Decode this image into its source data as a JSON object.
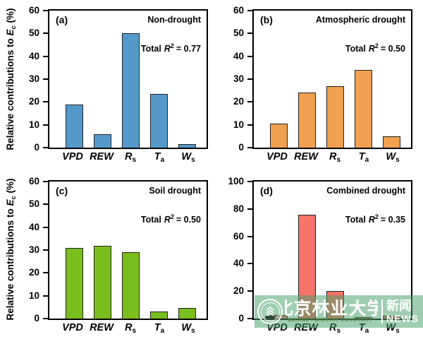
{
  "ylabel": {
    "prefix": "Relative contributions to ",
    "var": "E",
    "var_sub": "c",
    "suffix": " (%)"
  },
  "r2_parts": {
    "word": "Total",
    "symbol": "R",
    "sup": "2"
  },
  "categories": [
    {
      "main": "VPD",
      "sub": ""
    },
    {
      "main": "REW",
      "sub": ""
    },
    {
      "main": "R",
      "sub": "s"
    },
    {
      "main": "T",
      "sub": "a"
    },
    {
      "main": "W",
      "sub": "s"
    }
  ],
  "chart_data": [
    {
      "type": "bar",
      "panel_label": "(a)",
      "condition": "Non-drought",
      "total_r2": 0.77,
      "r2_display": "= 0.77",
      "color": "#5599CB",
      "bar_edge_color": "#222222",
      "categories": [
        "VPD",
        "REW",
        "R_s",
        "T_a",
        "W_s"
      ],
      "values": [
        19,
        6,
        50,
        23.5,
        1.5
      ],
      "ylim": [
        0,
        60
      ],
      "yticks": [
        0,
        10,
        20,
        30,
        40,
        50,
        60
      ],
      "ylabel": "Relative contributions to E_c (%)",
      "grid": false
    },
    {
      "type": "bar",
      "panel_label": "(b)",
      "condition": "Atmospheric drought",
      "total_r2": 0.5,
      "r2_display": "= 0.50",
      "color": "#F0A050",
      "bar_edge_color": "#222222",
      "categories": [
        "VPD",
        "REW",
        "R_s",
        "T_a",
        "W_s"
      ],
      "values": [
        10.5,
        24,
        27,
        34,
        5
      ],
      "ylim": [
        0,
        60
      ],
      "yticks": [
        0,
        10,
        20,
        30,
        40,
        50,
        60
      ],
      "ylabel": "",
      "grid": false
    },
    {
      "type": "bar",
      "panel_label": "(c)",
      "condition": "Soil drought",
      "total_r2": 0.5,
      "r2_display": "= 0.50",
      "color": "#7ABE1E",
      "bar_edge_color": "#222222",
      "categories": [
        "VPD",
        "REW",
        "R_s",
        "T_a",
        "W_s"
      ],
      "values": [
        31,
        32,
        29,
        3,
        4.5
      ],
      "ylim": [
        0,
        60
      ],
      "yticks": [
        0,
        10,
        20,
        30,
        40,
        50,
        60
      ],
      "ylabel": "Relative contributions to E_c (%)",
      "grid": false
    },
    {
      "type": "bar",
      "panel_label": "(d)",
      "condition": "Combined drought",
      "total_r2": 0.35,
      "r2_display": "= 0.35",
      "color": "#F57369",
      "bar_edge_color": "#222222",
      "categories": [
        "VPD",
        "REW",
        "R_s",
        "T_a",
        "W_s"
      ],
      "values": [
        2.5,
        76,
        20,
        0.8,
        2
      ],
      "ylim": [
        0,
        100
      ],
      "yticks": [
        0,
        20,
        40,
        60,
        80,
        100
      ],
      "ylabel": "",
      "grid": false
    }
  ],
  "watermark": {
    "university_zh": "北京林业大学",
    "university_en": "BEIJING FORESTRY UNIVERSITY",
    "news_zh": "新闻",
    "news_en": "NEWS",
    "band_color": "#46A069",
    "text_color": "#FFFFFF",
    "en_text_color": "#55843D"
  }
}
